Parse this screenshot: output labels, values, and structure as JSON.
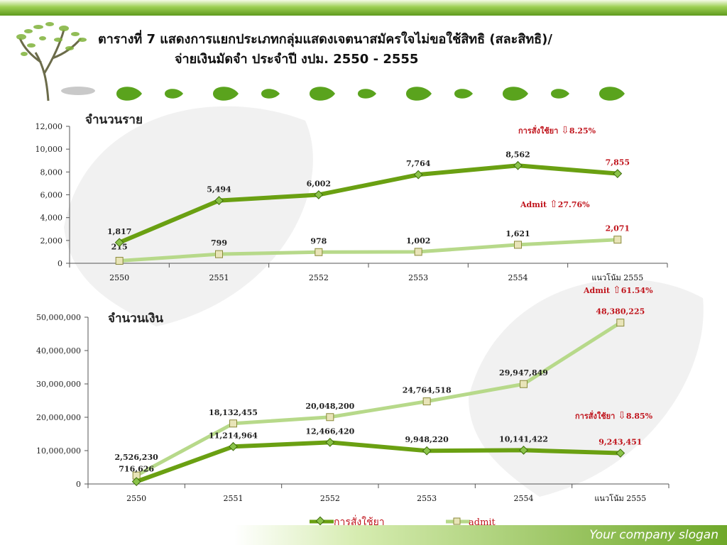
{
  "title": {
    "line1": "ตารางที่ 7  แสดงการแยกประเภทกลุ่มแสดงเจตนาสมัครใจไม่ขอใช้สิทธิ (สละสิทธิ)/",
    "line2": "จ่ายเงินมัดจำ ประจำปี งปม. 2550 - 2555"
  },
  "footer": {
    "slogan": "Your company slogan"
  },
  "colors": {
    "series1": "#6aa012",
    "series2": "#b7d98a",
    "annotation": "#c0141c",
    "axis": "#555555"
  },
  "legend": [
    {
      "label": "การสั่งใช้ยา",
      "marker": "diamond"
    },
    {
      "label": "admit",
      "marker": "square"
    }
  ],
  "chart_data": [
    {
      "type": "line",
      "title": "จำนวนราย",
      "categories": [
        "2550",
        "2551",
        "2552",
        "2553",
        "2554",
        "แนวโน้ม 2555"
      ],
      "ylim": [
        0,
        12000
      ],
      "yticks": [
        "0",
        "2,000",
        "4,000",
        "6,000",
        "8,000",
        "10,000",
        "12,000"
      ],
      "series": [
        {
          "name": "การสั่งใช้ยา",
          "values": [
            1817,
            5494,
            6002,
            7764,
            8562,
            7855
          ],
          "labels": [
            "1,817",
            "5,494",
            "6,002",
            "7,764",
            "8,562",
            "7,855"
          ]
        },
        {
          "name": "admit",
          "values": [
            215,
            799,
            978,
            1002,
            1621,
            2071
          ],
          "labels": [
            "215",
            "799",
            "978",
            "1,002",
            "1,621",
            "2,071"
          ]
        }
      ],
      "annotations": [
        {
          "text": "การสั่งใช้ยา",
          "arrow": "down",
          "pct": "8.25%"
        },
        {
          "text": "Admit",
          "arrow": "up",
          "pct": "27.76%"
        }
      ]
    },
    {
      "type": "line",
      "title": "จำนวนเงิน",
      "categories": [
        "2550",
        "2551",
        "2552",
        "2553",
        "2554",
        "แนวโน้ม 2555"
      ],
      "ylim": [
        0,
        50000000
      ],
      "yticks": [
        "0",
        "10,000,000",
        "20,000,000",
        "30,000,000",
        "40,000,000",
        "50,000,000"
      ],
      "series": [
        {
          "name": "การสั่งใช้ยา",
          "values": [
            716626,
            11214964,
            12466420,
            9948220,
            10141422,
            9243451
          ],
          "labels": [
            "716,626",
            "11,214,964",
            "12,466,420",
            "9,948,220",
            "10,141,422",
            "9,243,451"
          ]
        },
        {
          "name": "admit",
          "values": [
            2526230,
            18132455,
            20048200,
            24764518,
            29947849,
            48380225
          ],
          "labels": [
            "2,526,230",
            "18,132,455",
            "20,048,200",
            "24,764,518",
            "29,947,849",
            "48,380,225"
          ]
        }
      ],
      "annotations": [
        {
          "text": "Admit",
          "arrow": "up",
          "pct": "61.54%"
        },
        {
          "text": "การสั่งใช้ยา",
          "arrow": "down",
          "pct": "8.85%"
        }
      ]
    }
  ]
}
